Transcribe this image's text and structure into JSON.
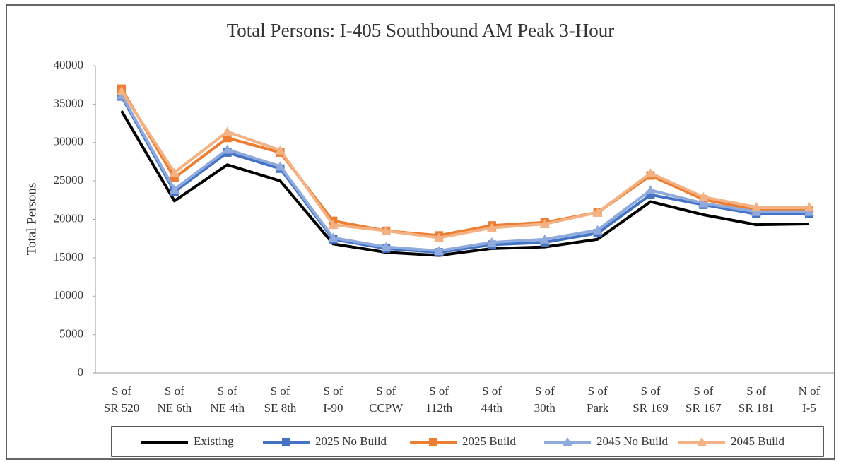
{
  "chart_data": {
    "type": "line",
    "title": "Total Persons: I-405 Southbound AM Peak 3-Hour",
    "y_label": "Total Persons",
    "categories": [
      [
        "S of",
        "SR 520"
      ],
      [
        "S of",
        "NE 6th"
      ],
      [
        "S of",
        "NE 4th"
      ],
      [
        "S of",
        "SE 8th"
      ],
      [
        "S of",
        "I-90"
      ],
      [
        "S of",
        "CCPW"
      ],
      [
        "S of",
        "112th"
      ],
      [
        "S of",
        "44th"
      ],
      [
        "S of",
        "30th"
      ],
      [
        "S of",
        "Park"
      ],
      [
        "S of",
        "SR 169"
      ],
      [
        "S of",
        "SR 167"
      ],
      [
        "S of",
        "SR 181"
      ],
      [
        "N of",
        "I-5"
      ]
    ],
    "series": [
      {
        "name": "Existing",
        "color": "#000000",
        "marker": "none",
        "values": [
          34100,
          22400,
          27100,
          25000,
          16800,
          15700,
          15300,
          16200,
          16400,
          17400,
          22300,
          20600,
          19300,
          19400
        ]
      },
      {
        "name": "2025 No Build",
        "color": "#4472c4",
        "marker": "square",
        "values": [
          36000,
          23600,
          28700,
          26600,
          17400,
          16200,
          15700,
          16700,
          17000,
          18200,
          23200,
          21900,
          20700,
          20700
        ]
      },
      {
        "name": "2025 Build",
        "color": "#ed7d31",
        "marker": "square",
        "values": [
          37000,
          25400,
          30600,
          28700,
          19800,
          18500,
          17900,
          19200,
          19600,
          20900,
          25700,
          22600,
          21200,
          21200
        ]
      },
      {
        "name": "2045 No Build",
        "color": "#8faadc",
        "marker": "triangle",
        "values": [
          36200,
          23900,
          29100,
          26900,
          17600,
          16400,
          15900,
          17000,
          17400,
          18600,
          23800,
          22100,
          21000,
          21000
        ]
      },
      {
        "name": "2045 Build",
        "color": "#f4b183",
        "marker": "triangle",
        "values": [
          36700,
          26100,
          31400,
          29000,
          19300,
          18500,
          17600,
          18900,
          19400,
          20900,
          26000,
          22900,
          21600,
          21600
        ]
      }
    ],
    "ylim": [
      0,
      40000
    ],
    "yticks": [
      0,
      5000,
      10000,
      15000,
      20000,
      25000,
      30000,
      35000,
      40000
    ],
    "grid": false,
    "legend": "bottom"
  }
}
